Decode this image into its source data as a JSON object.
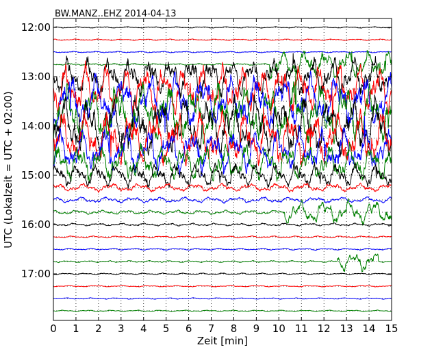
{
  "chart_data": {
    "type": "line",
    "title": "BW.MANZ..EHZ 2014-04-13",
    "xlabel": "Zeit  [min]",
    "ylabel": "UTC (Lokalzeit = UTC + 02:00)",
    "xlim": [
      0,
      15
    ],
    "x_ticks": [
      0,
      1,
      2,
      3,
      4,
      5,
      6,
      7,
      8,
      9,
      10,
      11,
      12,
      13,
      14,
      15
    ],
    "x_tick_labels": [
      "0",
      "1",
      "2",
      "3",
      "4",
      "5",
      "6",
      "7",
      "8",
      "9",
      "10",
      "11",
      "12",
      "13",
      "14",
      "15"
    ],
    "y_tick_labels": [
      "12:00",
      "13:00",
      "14:00",
      "15:00",
      "16:00",
      "17:00"
    ],
    "grid": true,
    "trace_interval_minutes": 15,
    "color_cycle": [
      "#000000",
      "#ff0000",
      "#0000ff",
      "#008000"
    ],
    "traces": [
      {
        "start": "12:00",
        "color": "#000000",
        "amplitude": 0.06,
        "events": []
      },
      {
        "start": "12:15",
        "color": "#ff0000",
        "amplitude": 0.06,
        "events": []
      },
      {
        "start": "12:30",
        "color": "#0000ff",
        "amplitude": 0.06,
        "events": []
      },
      {
        "start": "12:45",
        "color": "#008000",
        "amplitude": 0.08,
        "events": [
          {
            "start_min": 9.6,
            "end_min": 15,
            "amplitude": 1.2
          }
        ]
      },
      {
        "start": "13:00",
        "color": "#000000",
        "amplitude": 0.6,
        "events": [
          {
            "start_min": 0,
            "end_min": 15,
            "amplitude": 1.6
          }
        ]
      },
      {
        "start": "13:15",
        "color": "#ff0000",
        "amplitude": 0.7,
        "events": [
          {
            "start_min": 0,
            "end_min": 15,
            "amplitude": 2.0
          }
        ]
      },
      {
        "start": "13:30",
        "color": "#0000ff",
        "amplitude": 0.9,
        "events": [
          {
            "start_min": 0,
            "end_min": 15,
            "amplitude": 2.2
          }
        ]
      },
      {
        "start": "13:45",
        "color": "#008000",
        "amplitude": 1.0,
        "events": [
          {
            "start_min": 0,
            "end_min": 15,
            "amplitude": 2.4
          }
        ]
      },
      {
        "start": "14:00",
        "color": "#000000",
        "amplitude": 1.0,
        "events": [
          {
            "start_min": 0,
            "end_min": 15,
            "amplitude": 2.4
          }
        ]
      },
      {
        "start": "14:15",
        "color": "#ff0000",
        "amplitude": 1.0,
        "events": [
          {
            "start_min": 0,
            "end_min": 15,
            "amplitude": 2.2
          }
        ]
      },
      {
        "start": "14:30",
        "color": "#0000ff",
        "amplitude": 0.9,
        "events": [
          {
            "start_min": 0,
            "end_min": 15,
            "amplitude": 1.8
          }
        ]
      },
      {
        "start": "14:45",
        "color": "#008000",
        "amplitude": 0.8,
        "events": [
          {
            "start_min": 0,
            "end_min": 15,
            "amplitude": 1.5
          }
        ]
      },
      {
        "start": "15:00",
        "color": "#000000",
        "amplitude": 0.6,
        "events": [
          {
            "start_min": 0,
            "end_min": 15,
            "amplitude": 1.0
          }
        ]
      },
      {
        "start": "15:15",
        "color": "#ff0000",
        "amplitude": 0.35,
        "events": []
      },
      {
        "start": "15:30",
        "color": "#0000ff",
        "amplitude": 0.25,
        "events": []
      },
      {
        "start": "15:45",
        "color": "#008000",
        "amplitude": 0.18,
        "events": [
          {
            "start_min": 10.2,
            "end_min": 15,
            "amplitude": 1.0
          }
        ]
      },
      {
        "start": "16:00",
        "color": "#000000",
        "amplitude": 0.12,
        "events": []
      },
      {
        "start": "16:15",
        "color": "#ff0000",
        "amplitude": 0.08,
        "events": []
      },
      {
        "start": "16:30",
        "color": "#0000ff",
        "amplitude": 0.08,
        "events": []
      },
      {
        "start": "16:45",
        "color": "#008000",
        "amplitude": 0.08,
        "events": [
          {
            "start_min": 12.6,
            "end_min": 14.4,
            "amplitude": 0.8
          }
        ]
      },
      {
        "start": "17:00",
        "color": "#000000",
        "amplitude": 0.07,
        "events": []
      },
      {
        "start": "17:15",
        "color": "#ff0000",
        "amplitude": 0.06,
        "events": []
      },
      {
        "start": "17:30",
        "color": "#0000ff",
        "amplitude": 0.06,
        "events": []
      },
      {
        "start": "17:45",
        "color": "#008000",
        "amplitude": 0.06,
        "events": []
      }
    ]
  }
}
